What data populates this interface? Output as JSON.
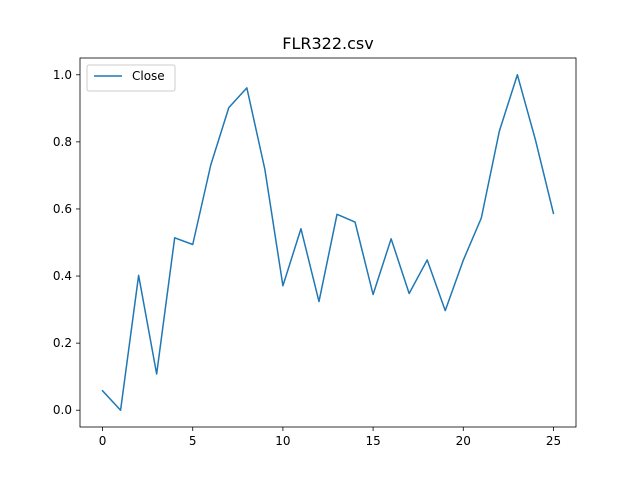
{
  "chart_data": {
    "type": "line",
    "title": "FLR322.csv",
    "xlabel": "",
    "ylabel": "",
    "xlim": [
      -1.25,
      26.25
    ],
    "ylim": [
      -0.05,
      1.05
    ],
    "xticks": [
      0,
      5,
      10,
      15,
      20,
      25
    ],
    "xtick_labels": [
      "0",
      "5",
      "10",
      "15",
      "20",
      "25"
    ],
    "yticks": [
      0.0,
      0.2,
      0.4,
      0.6,
      0.8,
      1.0
    ],
    "ytick_labels": [
      "0.0",
      "0.2",
      "0.4",
      "0.6",
      "0.8",
      "1.0"
    ],
    "grid": false,
    "legend_position": "top-left",
    "series": [
      {
        "name": "Close",
        "color": "#1f77b4",
        "x": [
          0,
          1,
          2,
          3,
          4,
          5,
          6,
          7,
          8,
          9,
          10,
          11,
          12,
          13,
          14,
          15,
          16,
          17,
          18,
          19,
          20,
          21,
          22,
          23,
          24,
          25
        ],
        "values": [
          0.058,
          0.0,
          0.402,
          0.108,
          0.514,
          0.494,
          0.731,
          0.902,
          0.961,
          0.718,
          0.371,
          0.541,
          0.324,
          0.584,
          0.561,
          0.345,
          0.511,
          0.348,
          0.448,
          0.297,
          0.447,
          0.573,
          0.832,
          1.0,
          0.806,
          0.587
        ]
      }
    ]
  }
}
